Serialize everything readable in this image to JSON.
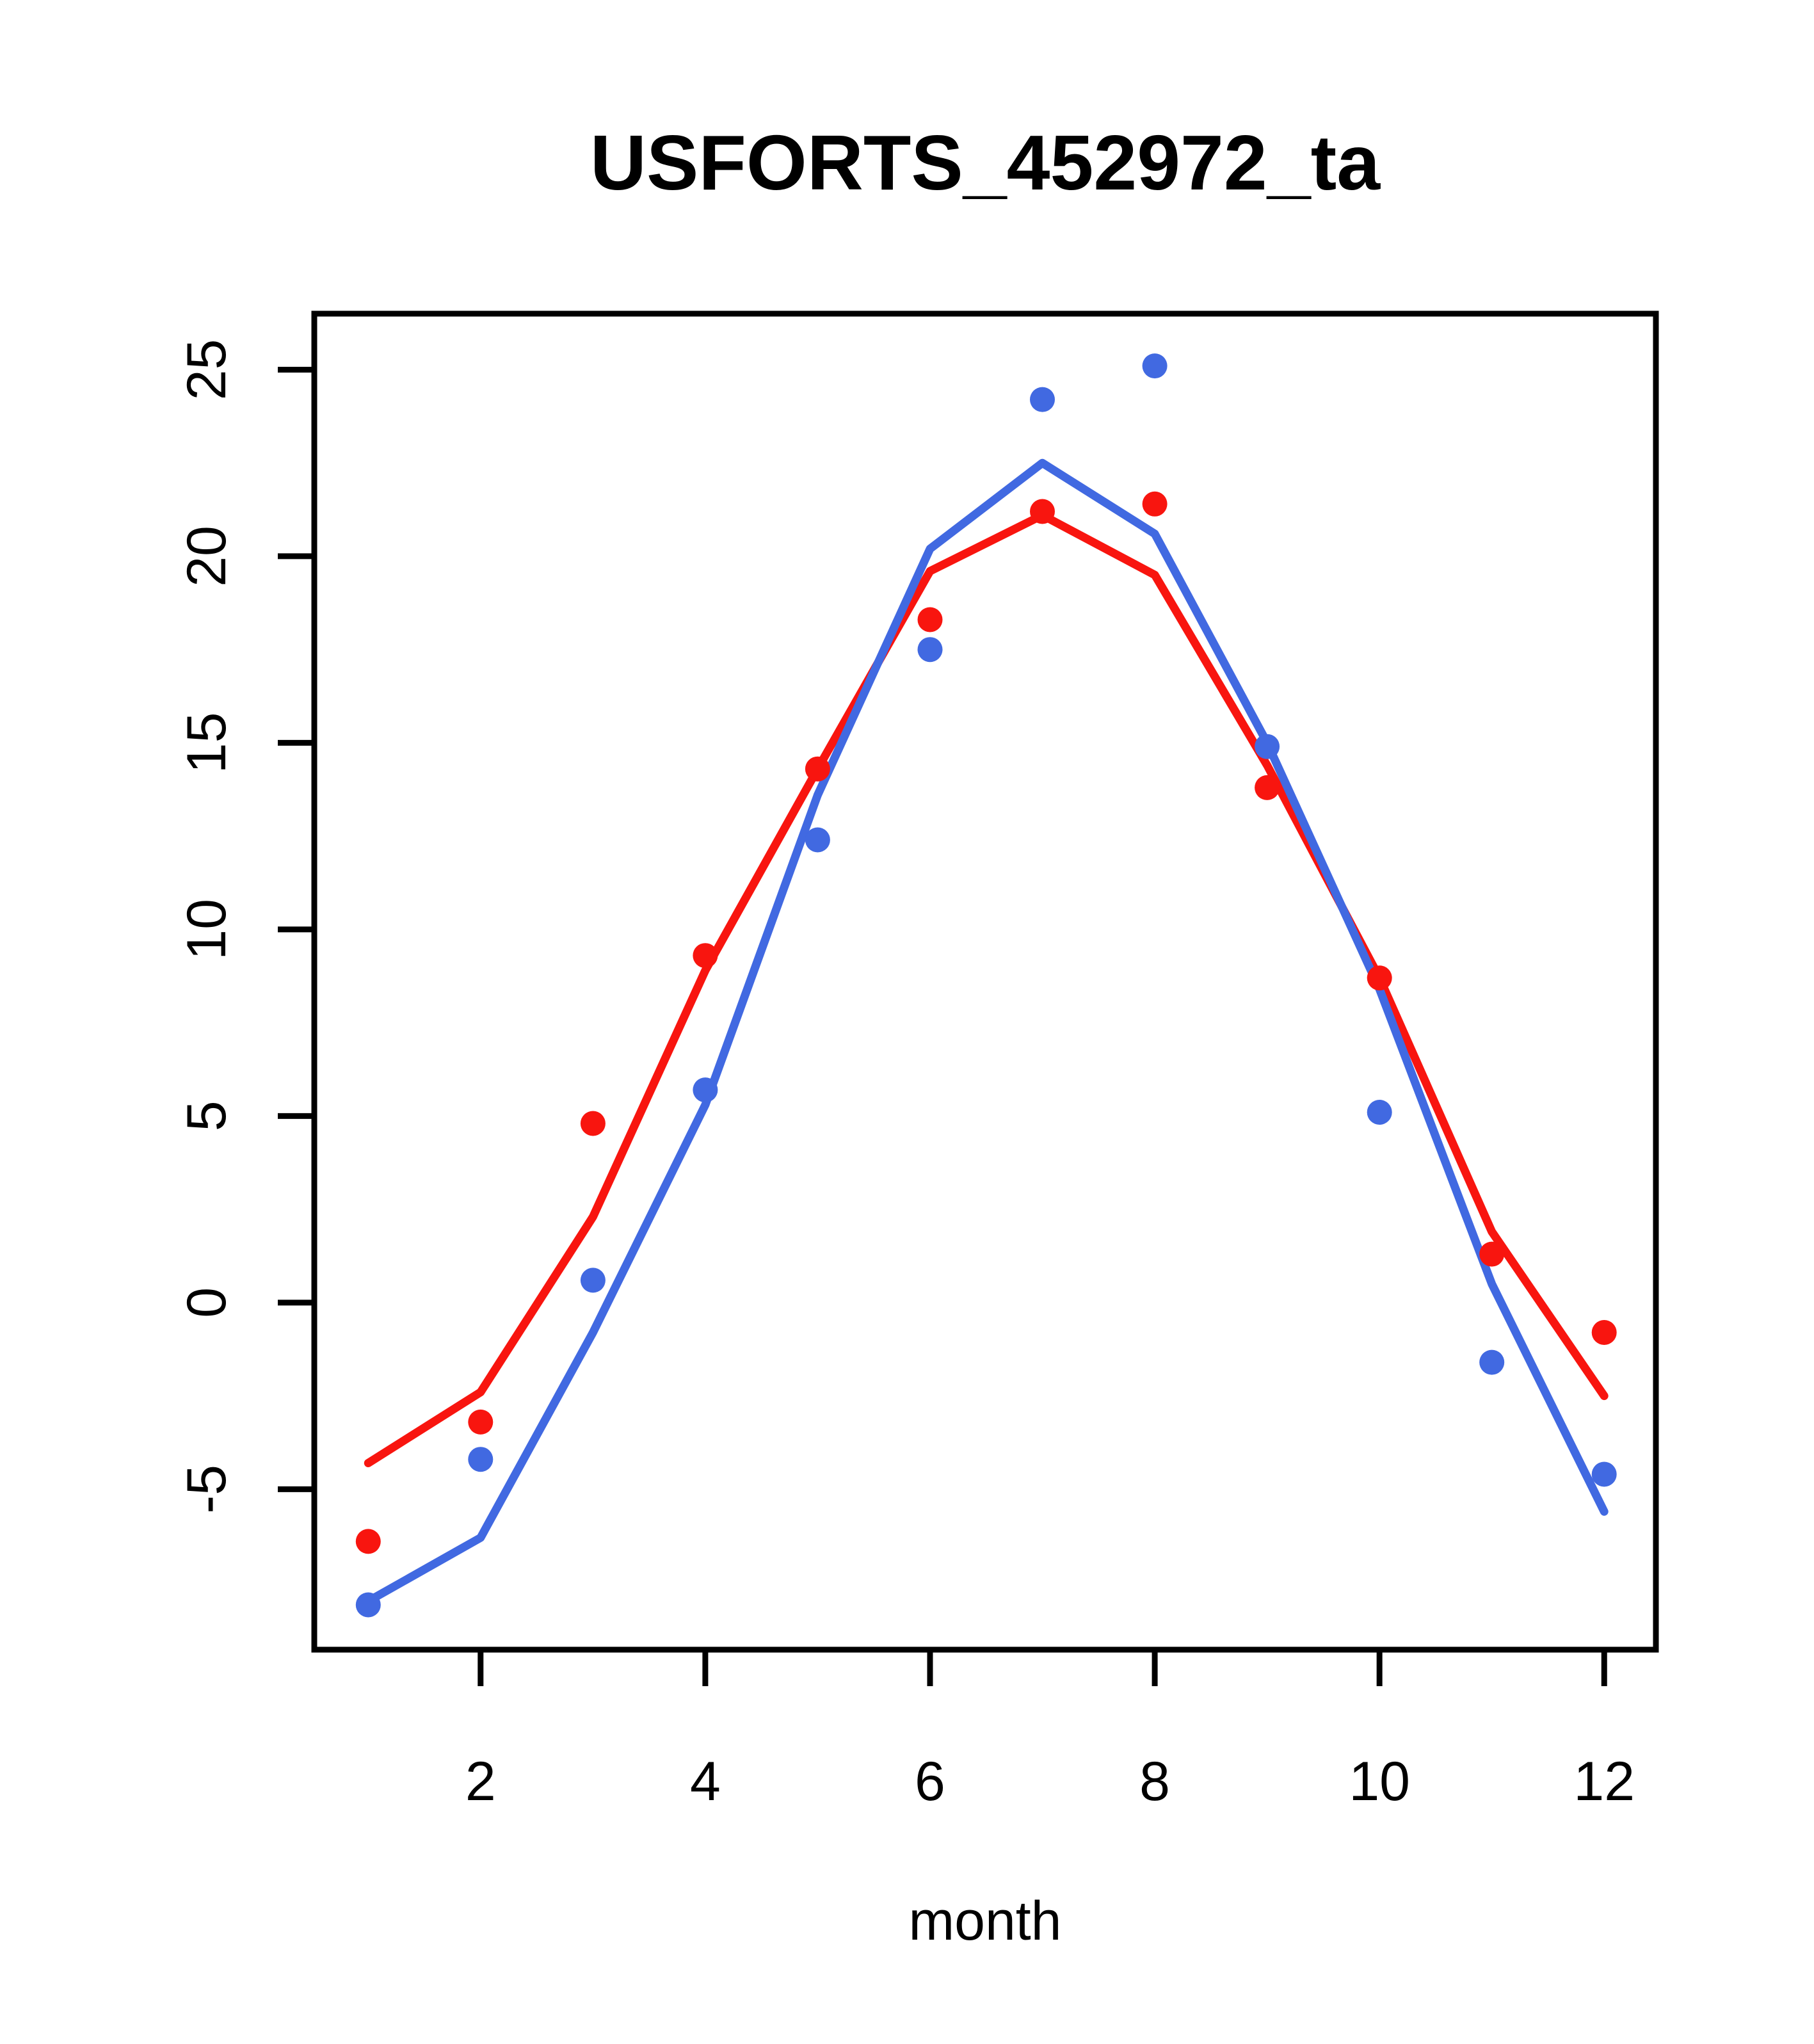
{
  "title": "USFORTS_452972_ta",
  "chart_data": {
    "type": "line",
    "title": "USFORTS_452972_ta",
    "xlabel": "month",
    "ylabel": "",
    "x": [
      1,
      2,
      3,
      4,
      5,
      6,
      7,
      8,
      9,
      10,
      11,
      12
    ],
    "x_ticks": [
      2,
      4,
      6,
      8,
      10,
      12
    ],
    "y_ticks": [
      -5,
      0,
      5,
      10,
      15,
      20,
      25
    ],
    "xlim": [
      0.52,
      12.46
    ],
    "ylim": [
      -9.3,
      26.5
    ],
    "grid": false,
    "legend_position": "none",
    "series": [
      {
        "name": "red-line",
        "kind": "line",
        "color": "#f8150f",
        "values": [
          -4.3,
          -2.4,
          2.3,
          8.9,
          14.3,
          19.6,
          21.1,
          19.5,
          14.4,
          8.7,
          1.9,
          -2.5
        ]
      },
      {
        "name": "blue-line",
        "kind": "line",
        "color": "#4169e1",
        "values": [
          -8.0,
          -6.3,
          -0.8,
          5.3,
          13.6,
          20.2,
          22.5,
          20.6,
          15.0,
          8.4,
          0.5,
          -5.6
        ]
      },
      {
        "name": "red-points",
        "kind": "scatter",
        "color": "#f8150f",
        "values": [
          -6.4,
          -3.2,
          4.8,
          9.3,
          14.3,
          18.3,
          21.2,
          21.4,
          13.8,
          8.7,
          1.3,
          -0.8
        ]
      },
      {
        "name": "blue-points",
        "kind": "scatter",
        "color": "#4169e1",
        "values": [
          -8.1,
          -4.2,
          0.6,
          5.7,
          12.4,
          17.5,
          24.2,
          25.1,
          14.9,
          5.1,
          -1.6,
          -4.6
        ]
      }
    ]
  },
  "colors": {
    "red": "#f8150f",
    "blue": "#4169e1",
    "axis": "#000000",
    "background": "#ffffff"
  }
}
